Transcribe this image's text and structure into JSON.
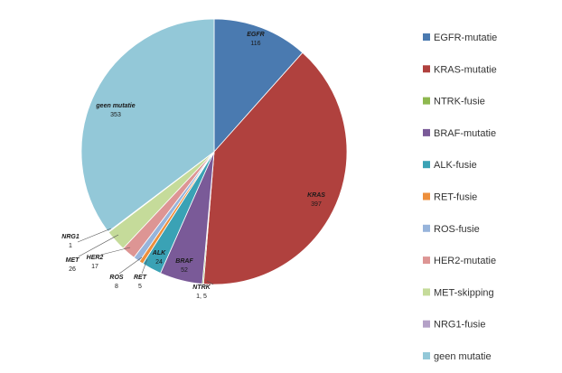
{
  "chart_data": {
    "type": "pie",
    "title": "",
    "legend_position": "right",
    "slices": [
      {
        "name": "EGFR-mutatie",
        "label": "EGFR",
        "value_label": "116",
        "value": 116,
        "color": "#4a7ab0"
      },
      {
        "name": "KRAS-mutatie",
        "label": "KRAS",
        "value_label": "397",
        "value": 397,
        "color": "#b0413e"
      },
      {
        "name": "NTRK-fusie",
        "label": "NTRK",
        "value_label": "1, 5",
        "value": 1.5,
        "color": "#8eb84f"
      },
      {
        "name": "BRAF-mutatie",
        "label": "BRAF",
        "value_label": "52",
        "value": 52,
        "color": "#7a5a98"
      },
      {
        "name": "ALK-fusie",
        "label": "ALK",
        "value_label": "24",
        "value": 24,
        "color": "#3aa2b5"
      },
      {
        "name": "RET-fusie",
        "label": "RET",
        "value_label": "5",
        "value": 5,
        "color": "#ed8f3c"
      },
      {
        "name": "ROS-fusie",
        "label": "ROS",
        "value_label": "8",
        "value": 8,
        "color": "#97b4db"
      },
      {
        "name": "HER2-mutatie",
        "label": "HER2",
        "value_label": "17",
        "value": 17,
        "color": "#dd9594"
      },
      {
        "name": "MET-skipping",
        "label": "MET",
        "value_label": "26",
        "value": 26,
        "color": "#c5db9a"
      },
      {
        "name": "NRG1-fusie",
        "label": "NRG1",
        "value_label": "1",
        "value": 1,
        "color": "#b4a1c7"
      },
      {
        "name": "geen mutatie",
        "label": "geen mutatie",
        "value_label": "353",
        "value": 353,
        "color": "#93c8d8"
      }
    ]
  }
}
